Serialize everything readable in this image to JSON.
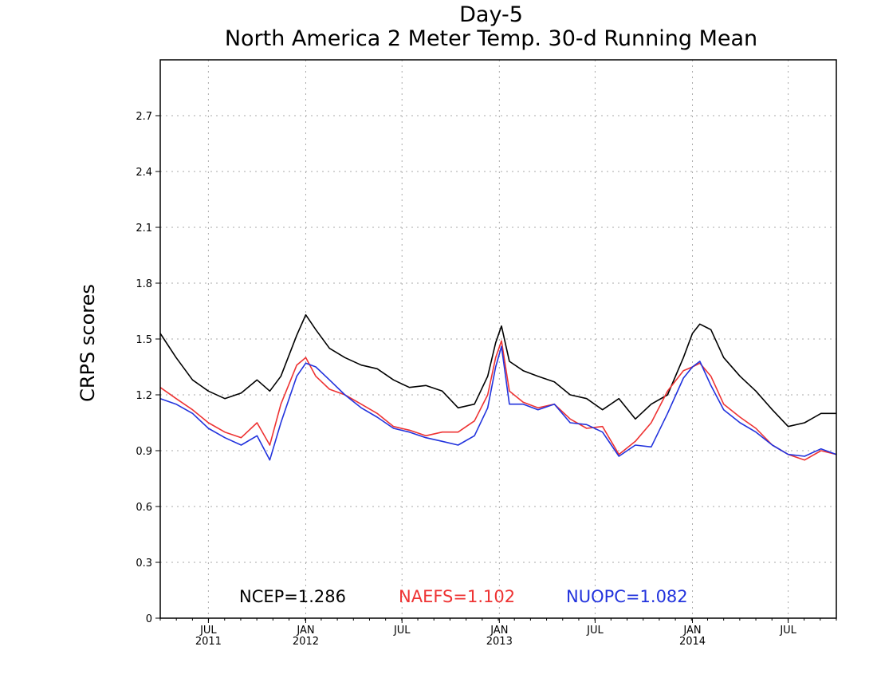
{
  "chart_data": {
    "type": "line",
    "title": "Day-5",
    "subtitle": "North America 2 Meter Temp. 30-d Running Mean",
    "xlabel": "",
    "ylabel": "CRPS scores",
    "ylim": [
      0,
      3.0
    ],
    "y_ticks": [
      "0",
      "0.3",
      "0.6",
      "0.9",
      "1.2",
      "1.5",
      "1.8",
      "2.1",
      "2.4",
      "2.7"
    ],
    "x_range": [
      "2011-04-01",
      "2014-09-30"
    ],
    "x_ticks": [
      {
        "date": "2011-07-01",
        "month": "JUL",
        "year": "2011"
      },
      {
        "date": "2012-01-01",
        "month": "JAN",
        "year": "2012"
      },
      {
        "date": "2012-07-01",
        "month": "JUL",
        "year": ""
      },
      {
        "date": "2013-01-01",
        "month": "JAN",
        "year": "2013"
      },
      {
        "date": "2013-07-01",
        "month": "JUL",
        "year": ""
      },
      {
        "date": "2014-01-01",
        "month": "JAN",
        "year": "2014"
      },
      {
        "date": "2014-07-01",
        "month": "JUL",
        "year": ""
      }
    ],
    "grid": true,
    "legend_position": "bottom",
    "series": [
      {
        "name": "NCEP",
        "color": "#000000",
        "legend_label": "NCEP=1.286",
        "x": [
          "2011-04-01",
          "2011-05-01",
          "2011-06-01",
          "2011-07-01",
          "2011-08-01",
          "2011-09-01",
          "2011-10-01",
          "2011-10-25",
          "2011-11-15",
          "2011-12-15",
          "2012-01-01",
          "2012-01-20",
          "2012-02-15",
          "2012-03-15",
          "2012-04-15",
          "2012-05-15",
          "2012-06-15",
          "2012-07-15",
          "2012-08-15",
          "2012-09-15",
          "2012-10-15",
          "2012-11-15",
          "2012-12-10",
          "2012-12-25",
          "2013-01-05",
          "2013-01-20",
          "2013-02-15",
          "2013-03-15",
          "2013-04-15",
          "2013-05-15",
          "2013-06-15",
          "2013-07-15",
          "2013-08-15",
          "2013-09-15",
          "2013-10-15",
          "2013-11-15",
          "2013-12-15",
          "2014-01-01",
          "2014-01-15",
          "2014-02-05",
          "2014-03-01",
          "2014-04-01",
          "2014-05-01",
          "2014-06-01",
          "2014-07-01",
          "2014-08-01",
          "2014-09-01",
          "2014-09-30"
        ],
        "y": [
          1.53,
          1.4,
          1.28,
          1.22,
          1.18,
          1.21,
          1.28,
          1.22,
          1.3,
          1.52,
          1.63,
          1.55,
          1.45,
          1.4,
          1.36,
          1.34,
          1.28,
          1.24,
          1.25,
          1.22,
          1.13,
          1.15,
          1.3,
          1.48,
          1.57,
          1.38,
          1.33,
          1.3,
          1.27,
          1.2,
          1.18,
          1.12,
          1.18,
          1.07,
          1.15,
          1.2,
          1.4,
          1.53,
          1.58,
          1.55,
          1.4,
          1.3,
          1.22,
          1.12,
          1.03,
          1.05,
          1.1,
          1.1
        ]
      },
      {
        "name": "NAEFS",
        "color": "#ee3333",
        "legend_label": "NAEFS=1.102",
        "x": [
          "2011-04-01",
          "2011-05-01",
          "2011-06-01",
          "2011-07-01",
          "2011-08-01",
          "2011-09-01",
          "2011-10-01",
          "2011-10-25",
          "2011-11-15",
          "2011-12-15",
          "2012-01-01",
          "2012-01-20",
          "2012-02-15",
          "2012-03-15",
          "2012-04-15",
          "2012-05-15",
          "2012-06-15",
          "2012-07-15",
          "2012-08-15",
          "2012-09-15",
          "2012-10-15",
          "2012-11-15",
          "2012-12-10",
          "2012-12-25",
          "2013-01-05",
          "2013-01-20",
          "2013-02-15",
          "2013-03-15",
          "2013-04-15",
          "2013-05-15",
          "2013-06-15",
          "2013-07-15",
          "2013-08-15",
          "2013-09-15",
          "2013-10-15",
          "2013-11-15",
          "2013-12-15",
          "2014-01-01",
          "2014-01-15",
          "2014-02-05",
          "2014-03-01",
          "2014-04-01",
          "2014-05-01",
          "2014-06-01",
          "2014-07-01",
          "2014-08-01",
          "2014-09-01",
          "2014-09-30"
        ],
        "y": [
          1.24,
          1.18,
          1.12,
          1.05,
          1.0,
          0.97,
          1.05,
          0.93,
          1.15,
          1.36,
          1.4,
          1.3,
          1.23,
          1.2,
          1.15,
          1.1,
          1.03,
          1.01,
          0.98,
          1.0,
          1.0,
          1.06,
          1.2,
          1.4,
          1.49,
          1.22,
          1.16,
          1.13,
          1.15,
          1.07,
          1.02,
          1.03,
          0.88,
          0.95,
          1.05,
          1.22,
          1.33,
          1.35,
          1.37,
          1.3,
          1.15,
          1.08,
          1.02,
          0.93,
          0.88,
          0.85,
          0.9,
          0.88
        ]
      },
      {
        "name": "NUOPC",
        "color": "#2233dd",
        "legend_label": "NUOPC=1.082",
        "x": [
          "2011-04-01",
          "2011-05-01",
          "2011-06-01",
          "2011-07-01",
          "2011-08-01",
          "2011-09-01",
          "2011-10-01",
          "2011-10-25",
          "2011-11-15",
          "2011-12-15",
          "2012-01-01",
          "2012-01-20",
          "2012-02-15",
          "2012-03-15",
          "2012-04-15",
          "2012-05-15",
          "2012-06-15",
          "2012-07-15",
          "2012-08-15",
          "2012-09-15",
          "2012-10-15",
          "2012-11-15",
          "2012-12-10",
          "2012-12-25",
          "2013-01-05",
          "2013-01-20",
          "2013-02-15",
          "2013-03-15",
          "2013-04-15",
          "2013-05-15",
          "2013-06-15",
          "2013-07-15",
          "2013-08-15",
          "2013-09-15",
          "2013-10-15",
          "2013-11-15",
          "2013-12-15",
          "2014-01-01",
          "2014-01-15",
          "2014-02-05",
          "2014-03-01",
          "2014-04-01",
          "2014-05-01",
          "2014-06-01",
          "2014-07-01",
          "2014-08-01",
          "2014-09-01",
          "2014-09-30"
        ],
        "y": [
          1.18,
          1.15,
          1.1,
          1.02,
          0.97,
          0.93,
          0.98,
          0.85,
          1.05,
          1.3,
          1.37,
          1.35,
          1.28,
          1.2,
          1.13,
          1.08,
          1.02,
          1.0,
          0.97,
          0.95,
          0.93,
          0.98,
          1.13,
          1.35,
          1.46,
          1.15,
          1.15,
          1.12,
          1.15,
          1.05,
          1.04,
          1.0,
          0.87,
          0.93,
          0.92,
          1.1,
          1.29,
          1.35,
          1.38,
          1.25,
          1.12,
          1.05,
          1.0,
          0.93,
          0.88,
          0.87,
          0.91,
          0.88
        ]
      }
    ]
  }
}
